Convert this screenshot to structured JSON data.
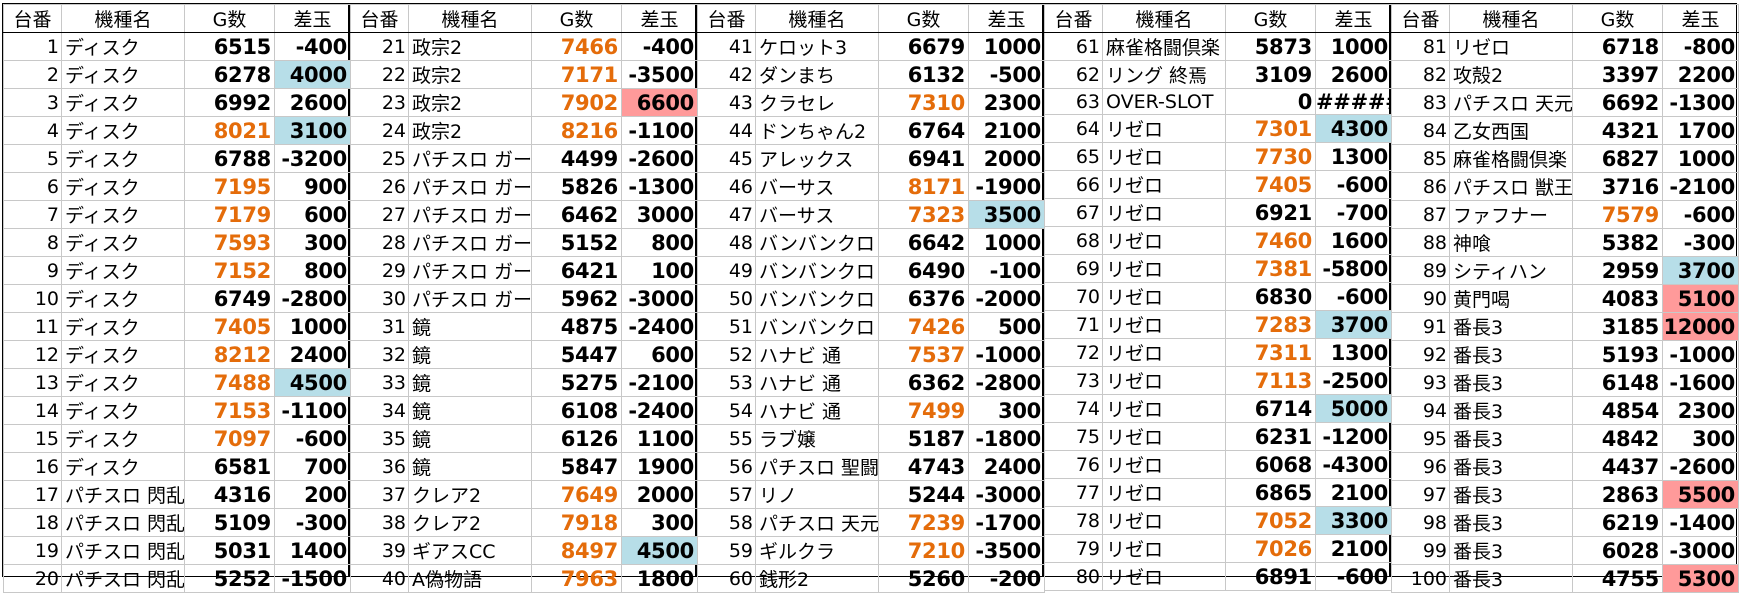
{
  "headers": {
    "no": "台番",
    "name": "機種名",
    "games": "G数",
    "diff": "差玉"
  },
  "colors": {
    "high_games": "#e46c0a",
    "plus_highlight": "#b7dee8",
    "big_plus_highlight": "#ff9a9a"
  },
  "blocks": [
    {
      "rows": [
        {
          "no": "1",
          "name": "ディスク",
          "games": "6515",
          "diff": "-400",
          "high": false,
          "hl": ""
        },
        {
          "no": "2",
          "name": "ディスク",
          "games": "6278",
          "diff": "4000",
          "high": false,
          "hl": "blue"
        },
        {
          "no": "3",
          "name": "ディスク",
          "games": "6992",
          "diff": "2600",
          "high": false,
          "hl": ""
        },
        {
          "no": "4",
          "name": "ディスク",
          "games": "8021",
          "diff": "3100",
          "high": true,
          "hl": "blue"
        },
        {
          "no": "5",
          "name": "ディスク",
          "games": "6788",
          "diff": "-3200",
          "high": false,
          "hl": ""
        },
        {
          "no": "6",
          "name": "ディスク",
          "games": "7195",
          "diff": "900",
          "high": true,
          "hl": ""
        },
        {
          "no": "7",
          "name": "ディスク",
          "games": "7179",
          "diff": "600",
          "high": true,
          "hl": ""
        },
        {
          "no": "8",
          "name": "ディスク",
          "games": "7593",
          "diff": "300",
          "high": true,
          "hl": ""
        },
        {
          "no": "9",
          "name": "ディスク",
          "games": "7152",
          "diff": "800",
          "high": true,
          "hl": ""
        },
        {
          "no": "10",
          "name": "ディスク",
          "games": "6749",
          "diff": "-2800",
          "high": false,
          "hl": ""
        },
        {
          "no": "11",
          "name": "ディスク",
          "games": "7405",
          "diff": "1000",
          "high": true,
          "hl": ""
        },
        {
          "no": "12",
          "name": "ディスク",
          "games": "8212",
          "diff": "2400",
          "high": true,
          "hl": ""
        },
        {
          "no": "13",
          "name": "ディスク",
          "games": "7488",
          "diff": "4500",
          "high": true,
          "hl": "blue"
        },
        {
          "no": "14",
          "name": "ディスク",
          "games": "7153",
          "diff": "-1100",
          "high": true,
          "hl": ""
        },
        {
          "no": "15",
          "name": "ディスク",
          "games": "7097",
          "diff": "-600",
          "high": true,
          "hl": ""
        },
        {
          "no": "16",
          "name": "ディスク",
          "games": "6581",
          "diff": "700",
          "high": false,
          "hl": ""
        },
        {
          "no": "17",
          "name": "パチスロ 閃乱",
          "games": "4316",
          "diff": "200",
          "high": false,
          "hl": ""
        },
        {
          "no": "18",
          "name": "パチスロ 閃乱",
          "games": "5109",
          "diff": "-300",
          "high": false,
          "hl": ""
        },
        {
          "no": "19",
          "name": "パチスロ 閃乱",
          "games": "5031",
          "diff": "1400",
          "high": false,
          "hl": ""
        },
        {
          "no": "20",
          "name": "パチスロ 閃乱",
          "games": "5252",
          "diff": "-1500",
          "high": false,
          "hl": ""
        }
      ]
    },
    {
      "rows": [
        {
          "no": "21",
          "name": "政宗2",
          "games": "7466",
          "diff": "-400",
          "high": true,
          "hl": ""
        },
        {
          "no": "22",
          "name": "政宗2",
          "games": "7171",
          "diff": "-3500",
          "high": true,
          "hl": ""
        },
        {
          "no": "23",
          "name": "政宗2",
          "games": "7902",
          "diff": "6600",
          "high": true,
          "hl": "red"
        },
        {
          "no": "24",
          "name": "政宗2",
          "games": "8216",
          "diff": "-1100",
          "high": true,
          "hl": ""
        },
        {
          "no": "25",
          "name": "パチスロ ガー",
          "games": "4499",
          "diff": "-2600",
          "high": false,
          "hl": ""
        },
        {
          "no": "26",
          "name": "パチスロ ガー",
          "games": "5826",
          "diff": "-1300",
          "high": false,
          "hl": ""
        },
        {
          "no": "27",
          "name": "パチスロ ガー",
          "games": "6462",
          "diff": "3000",
          "high": false,
          "hl": ""
        },
        {
          "no": "28",
          "name": "パチスロ ガー",
          "games": "5152",
          "diff": "800",
          "high": false,
          "hl": ""
        },
        {
          "no": "29",
          "name": "パチスロ ガー",
          "games": "6421",
          "diff": "100",
          "high": false,
          "hl": ""
        },
        {
          "no": "30",
          "name": "パチスロ ガー",
          "games": "5962",
          "diff": "-3000",
          "high": false,
          "hl": ""
        },
        {
          "no": "31",
          "name": "鏡",
          "games": "4875",
          "diff": "-2400",
          "high": false,
          "hl": ""
        },
        {
          "no": "32",
          "name": "鏡",
          "games": "5447",
          "diff": "600",
          "high": false,
          "hl": ""
        },
        {
          "no": "33",
          "name": "鏡",
          "games": "5275",
          "diff": "-2100",
          "high": false,
          "hl": ""
        },
        {
          "no": "34",
          "name": "鏡",
          "games": "6108",
          "diff": "-2400",
          "high": false,
          "hl": ""
        },
        {
          "no": "35",
          "name": "鏡",
          "games": "6126",
          "diff": "1100",
          "high": false,
          "hl": ""
        },
        {
          "no": "36",
          "name": "鏡",
          "games": "5847",
          "diff": "1900",
          "high": false,
          "hl": ""
        },
        {
          "no": "37",
          "name": "クレア2",
          "games": "7649",
          "diff": "2000",
          "high": true,
          "hl": ""
        },
        {
          "no": "38",
          "name": "クレア2",
          "games": "7918",
          "diff": "300",
          "high": true,
          "hl": ""
        },
        {
          "no": "39",
          "name": "ギアスCC",
          "games": "8497",
          "diff": "4500",
          "high": true,
          "hl": "blue"
        },
        {
          "no": "40",
          "name": "A偽物語",
          "games": "7963",
          "diff": "1800",
          "high": true,
          "hl": ""
        }
      ]
    },
    {
      "rows": [
        {
          "no": "41",
          "name": "ケロット3",
          "games": "6679",
          "diff": "1000",
          "high": false,
          "hl": ""
        },
        {
          "no": "42",
          "name": "ダンまち",
          "games": "6132",
          "diff": "-500",
          "high": false,
          "hl": ""
        },
        {
          "no": "43",
          "name": "クラセレ",
          "games": "7310",
          "diff": "2300",
          "high": true,
          "hl": ""
        },
        {
          "no": "44",
          "name": "ドンちゃん2",
          "games": "6764",
          "diff": "2100",
          "high": false,
          "hl": ""
        },
        {
          "no": "45",
          "name": "アレックス",
          "games": "6941",
          "diff": "2000",
          "high": false,
          "hl": ""
        },
        {
          "no": "46",
          "name": "バーサス",
          "games": "8171",
          "diff": "-1900",
          "high": true,
          "hl": ""
        },
        {
          "no": "47",
          "name": "バーサス",
          "games": "7323",
          "diff": "3500",
          "high": true,
          "hl": "blue"
        },
        {
          "no": "48",
          "name": "バンバンクロ",
          "games": "6642",
          "diff": "1000",
          "high": false,
          "hl": ""
        },
        {
          "no": "49",
          "name": "バンバンクロ",
          "games": "6490",
          "diff": "-100",
          "high": false,
          "hl": ""
        },
        {
          "no": "50",
          "name": "バンバンクロ",
          "games": "6376",
          "diff": "-2000",
          "high": false,
          "hl": ""
        },
        {
          "no": "51",
          "name": "バンバンクロ",
          "games": "7426",
          "diff": "500",
          "high": true,
          "hl": ""
        },
        {
          "no": "52",
          "name": "ハナビ 通",
          "games": "7537",
          "diff": "-1000",
          "high": true,
          "hl": ""
        },
        {
          "no": "53",
          "name": "ハナビ 通",
          "games": "6362",
          "diff": "-2800",
          "high": false,
          "hl": ""
        },
        {
          "no": "54",
          "name": "ハナビ 通",
          "games": "7499",
          "diff": "300",
          "high": true,
          "hl": ""
        },
        {
          "no": "55",
          "name": "ラブ嬢",
          "games": "5187",
          "diff": "-1800",
          "high": false,
          "hl": ""
        },
        {
          "no": "56",
          "name": "パチスロ 聖闘",
          "games": "4743",
          "diff": "2400",
          "high": false,
          "hl": ""
        },
        {
          "no": "57",
          "name": "リノ",
          "games": "5244",
          "diff": "-3000",
          "high": false,
          "hl": ""
        },
        {
          "no": "58",
          "name": "パチスロ 天元",
          "games": "7239",
          "diff": "-1700",
          "high": true,
          "hl": ""
        },
        {
          "no": "59",
          "name": "ギルクラ",
          "games": "7210",
          "diff": "-3500",
          "high": true,
          "hl": ""
        },
        {
          "no": "60",
          "name": "銭形2",
          "games": "5260",
          "diff": "-200",
          "high": false,
          "hl": ""
        }
      ]
    },
    {
      "rows": [
        {
          "no": "61",
          "name": "麻雀格闘倶楽",
          "games": "5873",
          "diff": "1000",
          "high": false,
          "hl": ""
        },
        {
          "no": "62",
          "name": "リング 終焉",
          "games": "3109",
          "diff": "2600",
          "high": false,
          "hl": ""
        },
        {
          "no": "63",
          "name": "OVER-SLOT",
          "games": "0",
          "diff": "#####",
          "high": false,
          "hl": ""
        },
        {
          "no": "64",
          "name": "リゼロ",
          "games": "7301",
          "diff": "4300",
          "high": true,
          "hl": "blue"
        },
        {
          "no": "65",
          "name": "リゼロ",
          "games": "7730",
          "diff": "1300",
          "high": true,
          "hl": ""
        },
        {
          "no": "66",
          "name": "リゼロ",
          "games": "7405",
          "diff": "-600",
          "high": true,
          "hl": ""
        },
        {
          "no": "67",
          "name": "リゼロ",
          "games": "6921",
          "diff": "-700",
          "high": false,
          "hl": ""
        },
        {
          "no": "68",
          "name": "リゼロ",
          "games": "7460",
          "diff": "1600",
          "high": true,
          "hl": ""
        },
        {
          "no": "69",
          "name": "リゼロ",
          "games": "7381",
          "diff": "-5800",
          "high": true,
          "hl": ""
        },
        {
          "no": "70",
          "name": "リゼロ",
          "games": "6830",
          "diff": "-600",
          "high": false,
          "hl": ""
        },
        {
          "no": "71",
          "name": "リゼロ",
          "games": "7283",
          "diff": "3700",
          "high": true,
          "hl": "blue"
        },
        {
          "no": "72",
          "name": "リゼロ",
          "games": "7311",
          "diff": "1300",
          "high": true,
          "hl": ""
        },
        {
          "no": "73",
          "name": "リゼロ",
          "games": "7113",
          "diff": "-2500",
          "high": true,
          "hl": ""
        },
        {
          "no": "74",
          "name": "リゼロ",
          "games": "6714",
          "diff": "5000",
          "high": false,
          "hl": "blue"
        },
        {
          "no": "75",
          "name": "リゼロ",
          "games": "6231",
          "diff": "-1200",
          "high": false,
          "hl": ""
        },
        {
          "no": "76",
          "name": "リゼロ",
          "games": "6068",
          "diff": "-4300",
          "high": false,
          "hl": ""
        },
        {
          "no": "77",
          "name": "リゼロ",
          "games": "6865",
          "diff": "2100",
          "high": false,
          "hl": ""
        },
        {
          "no": "78",
          "name": "リゼロ",
          "games": "7052",
          "diff": "3300",
          "high": true,
          "hl": "blue"
        },
        {
          "no": "79",
          "name": "リゼロ",
          "games": "7026",
          "diff": "2100",
          "high": true,
          "hl": ""
        },
        {
          "no": "80",
          "name": "リゼロ",
          "games": "6891",
          "diff": "-600",
          "high": false,
          "hl": ""
        }
      ]
    },
    {
      "rows": [
        {
          "no": "81",
          "name": "リゼロ",
          "games": "6718",
          "diff": "-800",
          "high": false,
          "hl": ""
        },
        {
          "no": "82",
          "name": "攻殻2",
          "games": "3397",
          "diff": "2200",
          "high": false,
          "hl": ""
        },
        {
          "no": "83",
          "name": "パチスロ 天元",
          "games": "6692",
          "diff": "-1300",
          "high": false,
          "hl": ""
        },
        {
          "no": "84",
          "name": "乙女西国",
          "games": "4321",
          "diff": "1700",
          "high": false,
          "hl": ""
        },
        {
          "no": "85",
          "name": "麻雀格闘倶楽",
          "games": "6827",
          "diff": "1000",
          "high": false,
          "hl": ""
        },
        {
          "no": "86",
          "name": "パチスロ 獣王",
          "games": "3716",
          "diff": "-2100",
          "high": false,
          "hl": ""
        },
        {
          "no": "87",
          "name": "ファフナー",
          "games": "7579",
          "diff": "-600",
          "high": true,
          "hl": ""
        },
        {
          "no": "88",
          "name": "神喰",
          "games": "5382",
          "diff": "-300",
          "high": false,
          "hl": ""
        },
        {
          "no": "89",
          "name": "シティハン",
          "games": "2959",
          "diff": "3700",
          "high": false,
          "hl": "blue"
        },
        {
          "no": "90",
          "name": "黄門喝",
          "games": "4083",
          "diff": "5100",
          "high": false,
          "hl": "red"
        },
        {
          "no": "91",
          "name": "番長3",
          "games": "3185",
          "diff": "12000",
          "high": false,
          "hl": "red"
        },
        {
          "no": "92",
          "name": "番長3",
          "games": "5193",
          "diff": "-1000",
          "high": false,
          "hl": ""
        },
        {
          "no": "93",
          "name": "番長3",
          "games": "6148",
          "diff": "-1600",
          "high": false,
          "hl": ""
        },
        {
          "no": "94",
          "name": "番長3",
          "games": "4854",
          "diff": "2300",
          "high": false,
          "hl": ""
        },
        {
          "no": "95",
          "name": "番長3",
          "games": "4842",
          "diff": "300",
          "high": false,
          "hl": ""
        },
        {
          "no": "96",
          "name": "番長3",
          "games": "4437",
          "diff": "-2600",
          "high": false,
          "hl": ""
        },
        {
          "no": "97",
          "name": "番長3",
          "games": "2863",
          "diff": "5500",
          "high": false,
          "hl": "red"
        },
        {
          "no": "98",
          "name": "番長3",
          "games": "6219",
          "diff": "-1400",
          "high": false,
          "hl": ""
        },
        {
          "no": "99",
          "name": "番長3",
          "games": "6028",
          "diff": "-3000",
          "high": false,
          "hl": ""
        },
        {
          "no": "100",
          "name": "番長3",
          "games": "4755",
          "diff": "5300",
          "high": false,
          "hl": "red"
        }
      ]
    }
  ]
}
